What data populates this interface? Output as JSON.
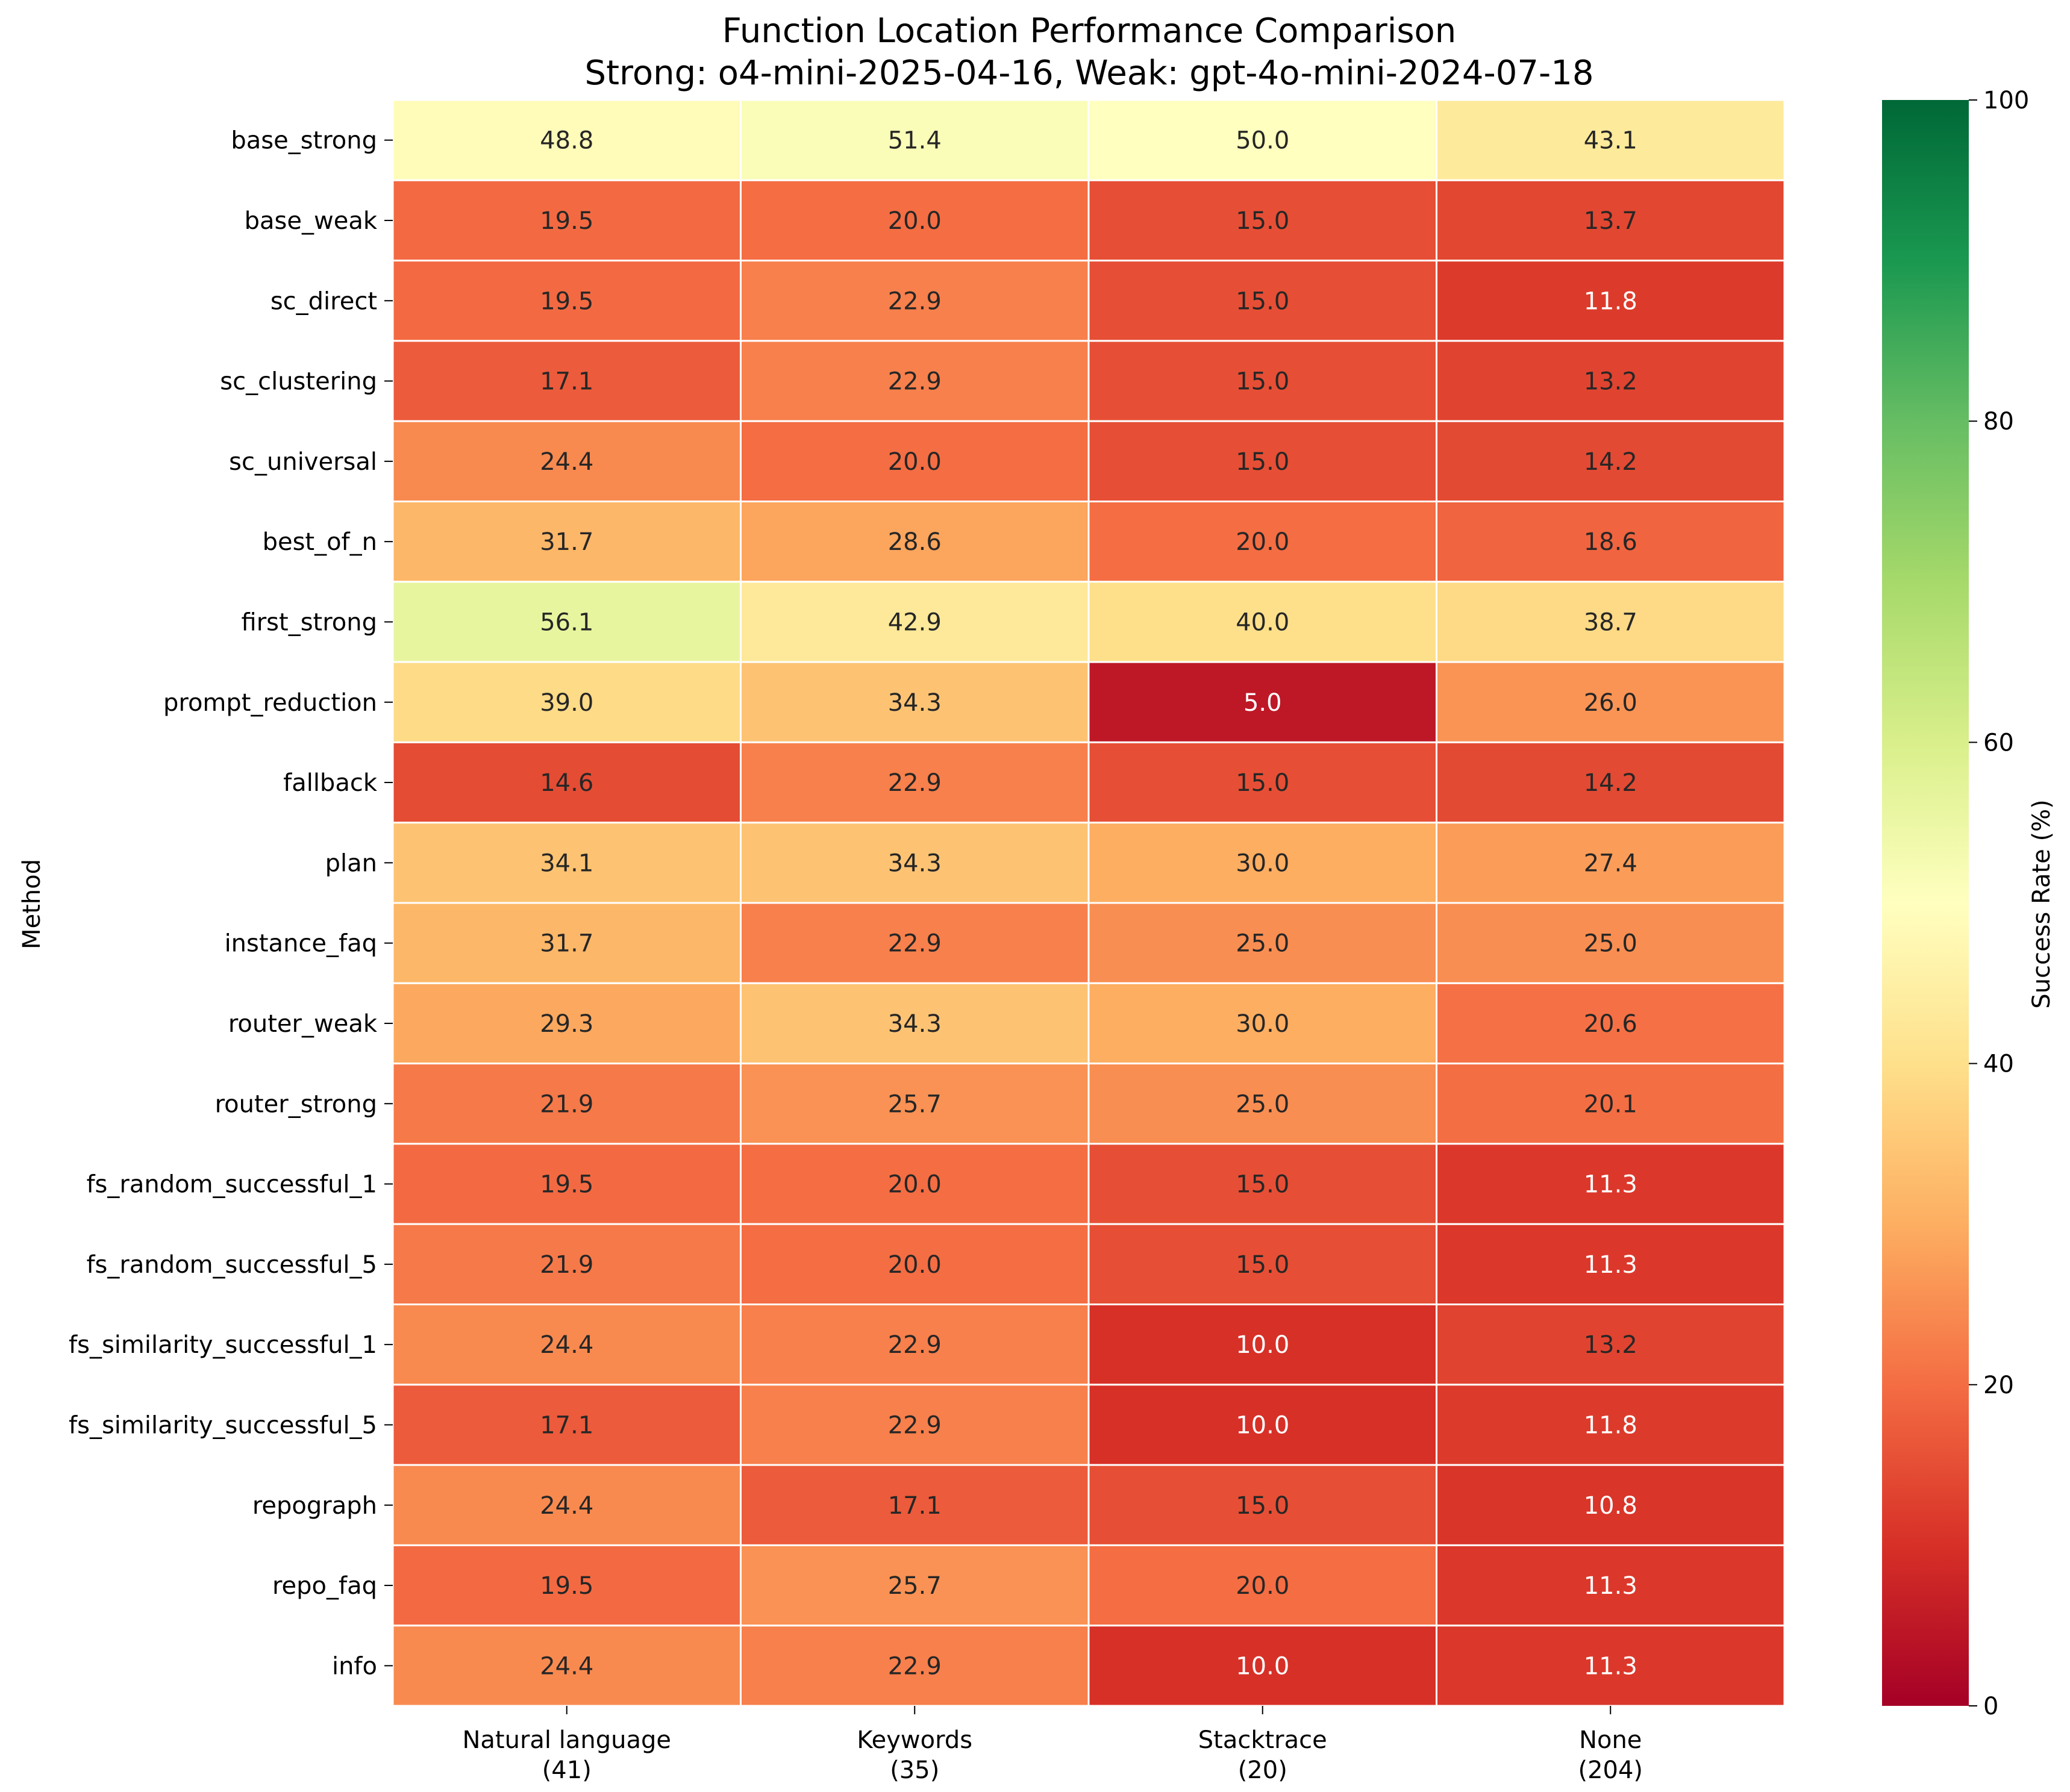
{
  "chart_data": {
    "type": "heatmap",
    "title": "Function Location Performance Comparison",
    "subtitle": "Strong: o4-mini-2025-04-16, Weak: gpt-4o-mini-2024-07-18",
    "ylabel": "Method",
    "xlabel": "",
    "columns": [
      {
        "label": "Natural language",
        "count": "(41)"
      },
      {
        "label": "Keywords",
        "count": "(35)"
      },
      {
        "label": "Stacktrace",
        "count": "(20)"
      },
      {
        "label": "None",
        "count": "(204)"
      }
    ],
    "rows": [
      "base_strong",
      "base_weak",
      "sc_direct",
      "sc_clustering",
      "sc_universal",
      "best_of_n",
      "first_strong",
      "prompt_reduction",
      "fallback",
      "plan",
      "instance_faq",
      "router_weak",
      "router_strong",
      "fs_random_successful_1",
      "fs_random_successful_5",
      "fs_similarity_successful_1",
      "fs_similarity_successful_5",
      "repograph",
      "repo_faq",
      "info"
    ],
    "values": [
      [
        48.8,
        51.4,
        50.0,
        43.1
      ],
      [
        19.5,
        20.0,
        15.0,
        13.7
      ],
      [
        19.5,
        22.9,
        15.0,
        11.8
      ],
      [
        17.1,
        22.9,
        15.0,
        13.2
      ],
      [
        24.4,
        20.0,
        15.0,
        14.2
      ],
      [
        31.7,
        28.6,
        20.0,
        18.6
      ],
      [
        56.1,
        42.9,
        40.0,
        38.7
      ],
      [
        39.0,
        34.3,
        5.0,
        26.0
      ],
      [
        14.6,
        22.9,
        15.0,
        14.2
      ],
      [
        34.1,
        34.3,
        30.0,
        27.4
      ],
      [
        31.7,
        22.9,
        25.0,
        25.0
      ],
      [
        29.3,
        34.3,
        30.0,
        20.6
      ],
      [
        21.9,
        25.7,
        25.0,
        20.1
      ],
      [
        19.5,
        20.0,
        15.0,
        11.3
      ],
      [
        21.9,
        20.0,
        15.0,
        11.3
      ],
      [
        24.4,
        22.9,
        10.0,
        13.2
      ],
      [
        17.1,
        22.9,
        10.0,
        11.8
      ],
      [
        24.4,
        17.1,
        15.0,
        10.8
      ],
      [
        19.5,
        25.7,
        20.0,
        11.3
      ],
      [
        24.4,
        22.9,
        10.0,
        11.3
      ]
    ],
    "colorbar": {
      "label": "Success Rate (%)",
      "range": [
        0,
        100
      ],
      "ticks": [
        "0",
        "20",
        "40",
        "60",
        "80",
        "100"
      ],
      "colormap": "RdYlGn"
    }
  }
}
